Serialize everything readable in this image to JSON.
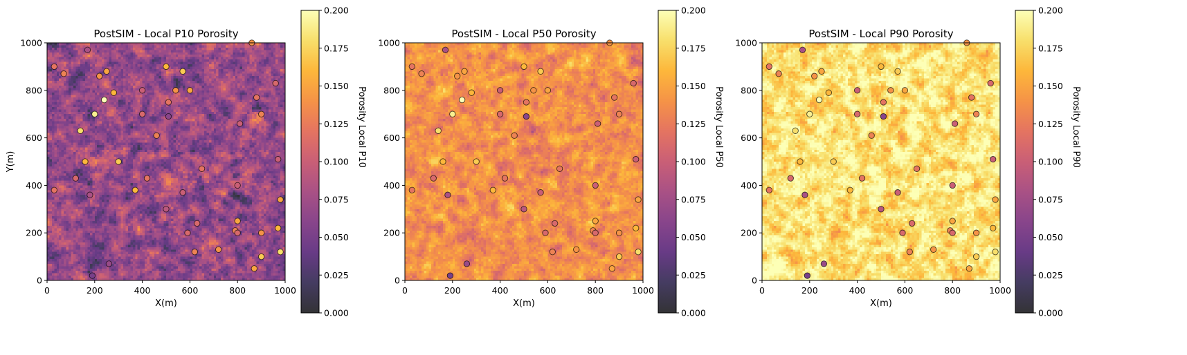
{
  "colormap": {
    "name": "inferno (alpha 0.8)",
    "stops": [
      "#000004",
      "#160b39",
      "#420a68",
      "#6a176e",
      "#932667",
      "#bc3754",
      "#dd513a",
      "#f37819",
      "#fca50a",
      "#f6d746",
      "#fcffa4"
    ],
    "alpha": 0.8
  },
  "chart_data": [
    {
      "type": "heatmap",
      "title": "PostSIM - Local P10 Porosity",
      "xlabel": "X(m)",
      "ylabel": "Y(m)",
      "xlim": [
        0,
        1000
      ],
      "ylim": [
        0,
        1000
      ],
      "xticks": [
        "0",
        "200",
        "400",
        "600",
        "800",
        "1000"
      ],
      "yticks": [
        "0",
        "200",
        "400",
        "600",
        "800",
        "1000"
      ],
      "colorbar": {
        "label": "Porosity Local P10",
        "range": [
          0.0,
          0.2
        ],
        "ticks": [
          "0.000",
          "0.025",
          "0.050",
          "0.075",
          "0.100",
          "0.125",
          "0.150",
          "0.175",
          "0.200"
        ]
      },
      "grid_cells": 100,
      "field": {
        "mean": 0.068,
        "std": 0.022,
        "seed": 11
      },
      "wells": {
        "point_colors": "porosity at well"
      }
    },
    {
      "type": "heatmap",
      "title": "PostSIM - Local P50 Porosity",
      "xlabel": "X(m)",
      "ylabel": "",
      "xlim": [
        0,
        1000
      ],
      "ylim": [
        0,
        1000
      ],
      "xticks": [
        "0",
        "200",
        "400",
        "600",
        "800",
        "1000"
      ],
      "yticks": [
        "0",
        "200",
        "400",
        "600",
        "800",
        "1000"
      ],
      "colorbar": {
        "label": "Porosity Local P50",
        "range": [
          0.0,
          0.2
        ],
        "ticks": [
          "0.000",
          "0.025",
          "0.050",
          "0.075",
          "0.100",
          "0.125",
          "0.150",
          "0.175",
          "0.200"
        ]
      },
      "grid_cells": 100,
      "field": {
        "mean": 0.138,
        "std": 0.014,
        "seed": 23
      }
    },
    {
      "type": "heatmap",
      "title": "PostSIM - Local P90 Porosity",
      "xlabel": "X(m)",
      "ylabel": "",
      "xlim": [
        0,
        1000
      ],
      "ylim": [
        0,
        1000
      ],
      "xticks": [
        "0",
        "200",
        "400",
        "600",
        "800",
        "1000"
      ],
      "yticks": [
        "0",
        "200",
        "400",
        "600",
        "800",
        "1000"
      ],
      "colorbar": {
        "label": "Porosity Local P90",
        "range": [
          0.0,
          0.2
        ],
        "ticks": [
          "0.000",
          "0.025",
          "0.050",
          "0.075",
          "0.100",
          "0.125",
          "0.150",
          "0.175",
          "0.200"
        ]
      },
      "grid_cells": 100,
      "field": {
        "mean": 0.182,
        "std": 0.016,
        "seed": 37
      }
    }
  ],
  "wells": [
    {
      "x": 30,
      "y": 900,
      "por": 0.12
    },
    {
      "x": 70,
      "y": 870,
      "por": 0.13
    },
    {
      "x": 170,
      "y": 970,
      "por": 0.08
    },
    {
      "x": 220,
      "y": 860,
      "por": 0.14
    },
    {
      "x": 250,
      "y": 880,
      "por": 0.15
    },
    {
      "x": 240,
      "y": 760,
      "por": 0.2
    },
    {
      "x": 280,
      "y": 790,
      "por": 0.16
    },
    {
      "x": 200,
      "y": 700,
      "por": 0.19
    },
    {
      "x": 140,
      "y": 630,
      "por": 0.18
    },
    {
      "x": 160,
      "y": 500,
      "por": 0.16
    },
    {
      "x": 120,
      "y": 430,
      "por": 0.11
    },
    {
      "x": 30,
      "y": 380,
      "por": 0.12
    },
    {
      "x": 180,
      "y": 360,
      "por": 0.08
    },
    {
      "x": 300,
      "y": 500,
      "por": 0.17
    },
    {
      "x": 400,
      "y": 800,
      "por": 0.1
    },
    {
      "x": 400,
      "y": 700,
      "por": 0.11
    },
    {
      "x": 500,
      "y": 900,
      "por": 0.16
    },
    {
      "x": 510,
      "y": 750,
      "por": 0.12
    },
    {
      "x": 540,
      "y": 800,
      "por": 0.14
    },
    {
      "x": 570,
      "y": 880,
      "por": 0.17
    },
    {
      "x": 600,
      "y": 800,
      "por": 0.15
    },
    {
      "x": 510,
      "y": 690,
      "por": 0.06
    },
    {
      "x": 460,
      "y": 610,
      "por": 0.13
    },
    {
      "x": 420,
      "y": 430,
      "por": 0.12
    },
    {
      "x": 370,
      "y": 380,
      "por": 0.16
    },
    {
      "x": 500,
      "y": 300,
      "por": 0.09
    },
    {
      "x": 570,
      "y": 370,
      "por": 0.1
    },
    {
      "x": 650,
      "y": 470,
      "por": 0.12
    },
    {
      "x": 630,
      "y": 240,
      "por": 0.11
    },
    {
      "x": 590,
      "y": 200,
      "por": 0.11
    },
    {
      "x": 620,
      "y": 120,
      "por": 0.13
    },
    {
      "x": 720,
      "y": 130,
      "por": 0.14
    },
    {
      "x": 260,
      "y": 70,
      "por": 0.07
    },
    {
      "x": 190,
      "y": 20,
      "por": 0.05
    },
    {
      "x": 810,
      "y": 660,
      "por": 0.1
    },
    {
      "x": 880,
      "y": 770,
      "por": 0.12
    },
    {
      "x": 900,
      "y": 700,
      "por": 0.13
    },
    {
      "x": 960,
      "y": 830,
      "por": 0.11
    },
    {
      "x": 860,
      "y": 1000,
      "por": 0.14
    },
    {
      "x": 970,
      "y": 510,
      "por": 0.1
    },
    {
      "x": 980,
      "y": 340,
      "por": 0.15
    },
    {
      "x": 800,
      "y": 400,
      "por": 0.1
    },
    {
      "x": 800,
      "y": 250,
      "por": 0.15
    },
    {
      "x": 790,
      "y": 210,
      "por": 0.13
    },
    {
      "x": 800,
      "y": 200,
      "por": 0.11
    },
    {
      "x": 900,
      "y": 200,
      "por": 0.14
    },
    {
      "x": 970,
      "y": 220,
      "por": 0.16
    },
    {
      "x": 900,
      "y": 100,
      "por": 0.17
    },
    {
      "x": 980,
      "y": 120,
      "por": 0.18
    },
    {
      "x": 870,
      "y": 50,
      "por": 0.15
    }
  ]
}
